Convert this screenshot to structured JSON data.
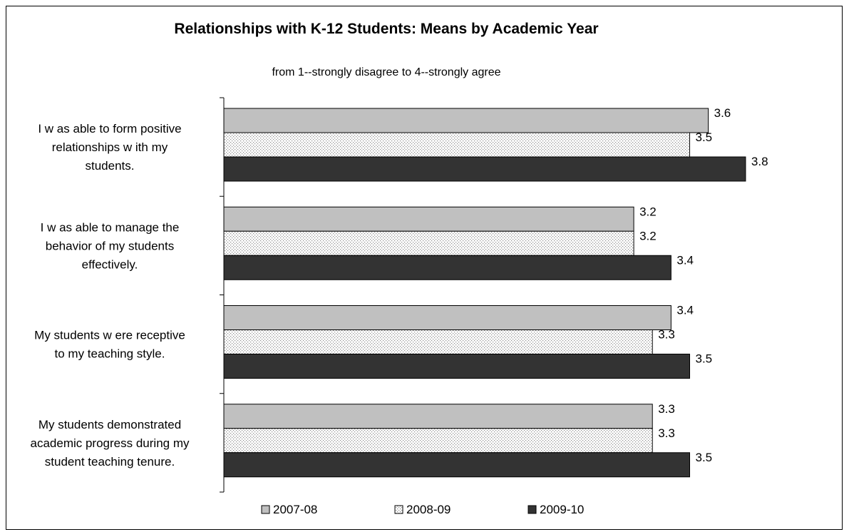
{
  "chart_data": {
    "type": "bar",
    "orientation": "horizontal",
    "title": "Relationships with K-12 Students: Means by Academic Year",
    "subtitle": "from 1--strongly disagree to 4--strongly agree",
    "categories": [
      [
        "I w as able to form positive",
        "relationships w ith my",
        "students."
      ],
      [
        "I w as able to manage the",
        "behavior of my students",
        "effectively."
      ],
      [
        "My students w ere receptive",
        "to my teaching style."
      ],
      [
        "My students demonstrated",
        "academic progress during my",
        "student teaching tenure."
      ]
    ],
    "series": [
      {
        "name": "2007-08",
        "values": [
          3.6,
          3.2,
          3.4,
          3.3
        ],
        "color": "#c0c0c0",
        "pattern": "solid"
      },
      {
        "name": "2008-09",
        "values": [
          3.5,
          3.2,
          3.3,
          3.3
        ],
        "color": "#ffffff",
        "pattern": "dotted"
      },
      {
        "name": "2009-10",
        "values": [
          3.8,
          3.4,
          3.5,
          3.5
        ],
        "color": "#333333",
        "pattern": "solid"
      }
    ],
    "value_labels": [
      [
        "3.6",
        "3.2",
        "3.4",
        "3.3"
      ],
      [
        "3.5",
        "3.2",
        "3.3",
        "3.3"
      ],
      [
        "3.8",
        "3.4",
        "3.5",
        "3.5"
      ]
    ],
    "xlim": [
      1,
      4
    ],
    "grid": false,
    "legend_position": "bottom"
  }
}
